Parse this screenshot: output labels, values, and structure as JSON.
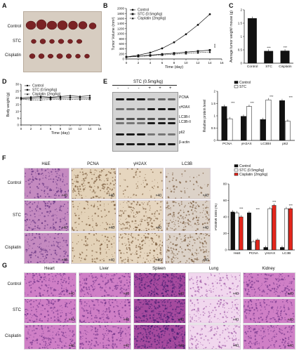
{
  "panel_labels": {
    "A": "A",
    "B": "B",
    "C": "C",
    "D": "D",
    "E": "E",
    "F": "F",
    "G": "G"
  },
  "panel_a": {
    "rows": [
      "Control",
      "STC",
      "Cisplatin"
    ]
  },
  "chart_data": [
    {
      "id": "B",
      "type": "line",
      "ylabel": "Tumor Volume (mm³)",
      "xlabel": "Time (day)",
      "xlim": [
        0,
        16
      ],
      "ylim": [
        0,
        2000
      ],
      "xticks": [
        0,
        2,
        4,
        6,
        8,
        10,
        12,
        14,
        16
      ],
      "yticks": [
        0,
        200,
        400,
        600,
        800,
        1000,
        1200,
        1400,
        1600,
        1800,
        2000
      ],
      "legend_position": "top-left",
      "series": [
        {
          "name": "Control",
          "x": [
            0,
            2,
            4,
            6,
            8,
            10,
            12,
            14
          ],
          "y": [
            80,
            150,
            250,
            420,
            660,
            980,
            1350,
            1770
          ]
        },
        {
          "name": "STC (0.5mg/kg)",
          "x": [
            0,
            2,
            4,
            6,
            8,
            10,
            12,
            14
          ],
          "y": [
            80,
            110,
            150,
            190,
            230,
            270,
            310,
            350
          ]
        },
        {
          "name": "Cisplatin (2mg/kg)",
          "x": [
            0,
            2,
            4,
            6,
            8,
            10,
            12,
            14
          ],
          "y": [
            80,
            100,
            130,
            160,
            190,
            220,
            250,
            280
          ]
        }
      ],
      "annotation": "***"
    },
    {
      "id": "C",
      "type": "bar",
      "ylabel": "Average tumor weight/ mouse (g)",
      "categories": [
        "Control",
        "STC",
        "Cisplatin"
      ],
      "values": [
        1.68,
        0.45,
        0.46
      ],
      "ylim": [
        0,
        2.0
      ],
      "yticks": [
        0.0,
        0.5,
        1.0,
        1.5,
        2.0
      ],
      "annotations": [
        "",
        "***",
        "***"
      ]
    },
    {
      "id": "D",
      "type": "line",
      "ylabel": "Body weight (g)",
      "xlabel": "Time (day)",
      "xlim": [
        0,
        16
      ],
      "ylim": [
        0,
        30
      ],
      "xticks": [
        0,
        2,
        4,
        6,
        8,
        10,
        12,
        14,
        16
      ],
      "yticks": [
        0,
        5,
        10,
        15,
        20,
        25,
        30
      ],
      "legend_position": "top-left",
      "series": [
        {
          "name": "Control",
          "x": [
            0,
            2,
            4,
            6,
            8,
            10,
            12,
            14
          ],
          "y": [
            20,
            20.5,
            21,
            20.5,
            21,
            21.5,
            21,
            21.5
          ]
        },
        {
          "name": "STC (0.5mg/kg)",
          "x": [
            0,
            2,
            4,
            6,
            8,
            10,
            12,
            14
          ],
          "y": [
            19.5,
            19.5,
            20,
            19.8,
            20,
            20.2,
            20,
            20
          ]
        },
        {
          "name": "Cisplatin (2mg/kg)",
          "x": [
            0,
            2,
            4,
            6,
            8,
            10,
            12,
            14
          ],
          "y": [
            19,
            18.5,
            18.5,
            18.8,
            19,
            19,
            18.8,
            19
          ]
        }
      ]
    },
    {
      "id": "E_quant",
      "type": "bar",
      "ylabel": "Relative protein level",
      "categories": [
        "PCNA",
        "γH2AX",
        "LC3BII",
        "p62"
      ],
      "ylim": [
        0,
        2.0
      ],
      "yticks": [
        0.0,
        0.5,
        1.0,
        1.5,
        2.0
      ],
      "legend_position": "top",
      "series": [
        {
          "name": "Control",
          "values": [
            1.38,
            0.98,
            0.85,
            1.62
          ]
        },
        {
          "name": "STC",
          "values": [
            0.88,
            1.38,
            1.65,
            0.78
          ]
        }
      ],
      "annotations": [
        "***",
        "***",
        "***",
        "***"
      ]
    },
    {
      "id": "F_quant",
      "type": "bar",
      "ylabel": "Positive cells (%)",
      "categories": [
        "H&E",
        "PCNA",
        "γH2AX",
        "LC3B"
      ],
      "ylim": [
        0,
        80
      ],
      "yticks": [
        0,
        20,
        40,
        60,
        80
      ],
      "legend_position": "top",
      "series": [
        {
          "name": "Control",
          "values": [
            46,
            45,
            3,
            3
          ]
        },
        {
          "name": "STC (0.5mg/kg)",
          "values": [
            45,
            10,
            50,
            50
          ]
        },
        {
          "name": "Cisplatin (2mg/kg)",
          "values": [
            40,
            12,
            54,
            50
          ]
        }
      ],
      "annotations": [
        "***",
        "***",
        "***",
        "***"
      ]
    }
  ],
  "panel_e": {
    "header": "STC (0.5mg/kg)",
    "lane_signs": [
      "-",
      "-",
      "-",
      "+",
      "+",
      "+"
    ],
    "proteins": [
      "PCNA",
      "γH2AX",
      "LC3B-I",
      "LC3B-II",
      "p62",
      "β-actin"
    ]
  },
  "panel_f": {
    "columns": [
      "H&E",
      "PCNA",
      "γH2AX",
      "LC3B"
    ],
    "rows": [
      "Control",
      "STC",
      "Cisplatin"
    ],
    "mag": "×40"
  },
  "panel_g": {
    "columns": [
      "Heart",
      "Liver",
      "Spleen",
      "Lung",
      "Kidney"
    ],
    "rows": [
      "Control",
      "STC",
      "Cisplatin"
    ],
    "mag": "×40"
  },
  "colors": {
    "control": "#111111",
    "stc": "#ffffff",
    "cisplatin": "#e3261c",
    "he_stain": "#c48ac0",
    "ihc": "#e3d2b8"
  }
}
